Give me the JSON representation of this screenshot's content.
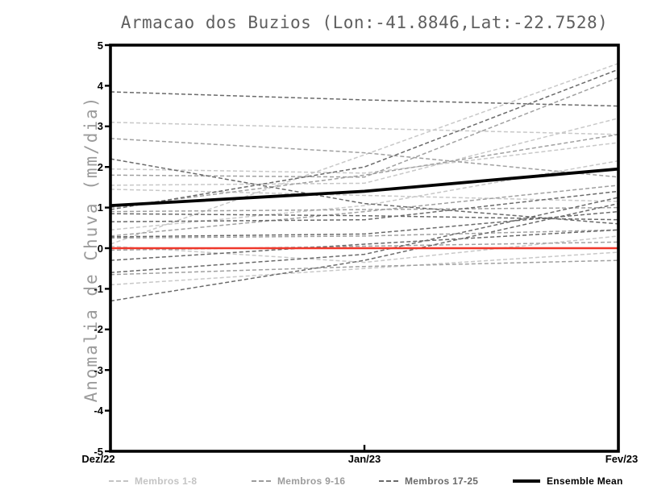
{
  "chart_data": {
    "type": "line",
    "title": "Armacao dos Buzios (Lon:-41.8846,Lat:-22.7528)",
    "xlabel": "",
    "ylabel": "Anomalia de Chuva (mm/dia)",
    "categories": [
      "Dez/22",
      "Jan/23",
      "Fev/23"
    ],
    "ylim": [
      -5,
      5
    ],
    "yticks": [
      5,
      4,
      3,
      2,
      1,
      0,
      -1,
      -2,
      -3,
      -4,
      -5
    ],
    "grid": false,
    "legend_position": "bottom",
    "zero_line": {
      "value": 0,
      "color": "#ef382b"
    },
    "series_groups": [
      {
        "label": "Membros 1-8",
        "color": "#c8c8c8",
        "style": "dashed",
        "members": [
          [
            3.1,
            2.95,
            2.8
          ],
          [
            1.95,
            1.85,
            2.6
          ],
          [
            1.55,
            1.6,
            3.2
          ],
          [
            0.45,
            1.05,
            2.15
          ],
          [
            0.1,
            2.3,
            4.55
          ],
          [
            -0.9,
            -0.5,
            -0.1
          ],
          [
            0.05,
            -0.35,
            0.3
          ],
          [
            1.45,
            1.3,
            1.15
          ]
        ]
      },
      {
        "label": "Membros 9-16",
        "color": "#a0a0a0",
        "style": "dashed",
        "members": [
          [
            2.7,
            2.35,
            1.75
          ],
          [
            1.8,
            1.75,
            4.2
          ],
          [
            1.0,
            1.8,
            2.8
          ],
          [
            0.9,
            0.95,
            1.0
          ],
          [
            0.3,
            0.9,
            1.55
          ],
          [
            0.25,
            0.3,
            0.45
          ],
          [
            -0.05,
            0.05,
            0.15
          ],
          [
            -0.65,
            -0.45,
            -0.3
          ]
        ]
      },
      {
        "label": "Membros 17-25",
        "color": "#6a6a6a",
        "style": "dashed",
        "members": [
          [
            3.85,
            3.65,
            3.5
          ],
          [
            2.2,
            1.1,
            0.6
          ],
          [
            0.95,
            2.0,
            4.4
          ],
          [
            0.85,
            0.8,
            0.7
          ],
          [
            0.65,
            0.7,
            1.4
          ],
          [
            0.28,
            0.35,
            0.9
          ],
          [
            -0.3,
            0.1,
            0.45
          ],
          [
            -0.6,
            -0.15,
            1.25
          ],
          [
            -1.3,
            -0.3,
            1.1
          ]
        ]
      }
    ],
    "ensemble_mean": {
      "label": "Ensemble Mean",
      "color": "#000000",
      "values": [
        1.05,
        1.4,
        1.95
      ]
    }
  },
  "legend": {
    "entries": [
      {
        "label": "Membros 1-8",
        "color": "#c4c4c4",
        "style": "dashed"
      },
      {
        "label": "Membros 9-16",
        "color": "#9c9c9c",
        "style": "dashed"
      },
      {
        "label": "Membros 17-25",
        "color": "#6a6a6a",
        "style": "dashed"
      },
      {
        "label": "Ensemble Mean",
        "color": "#000000",
        "style": "solid-thick"
      }
    ]
  }
}
